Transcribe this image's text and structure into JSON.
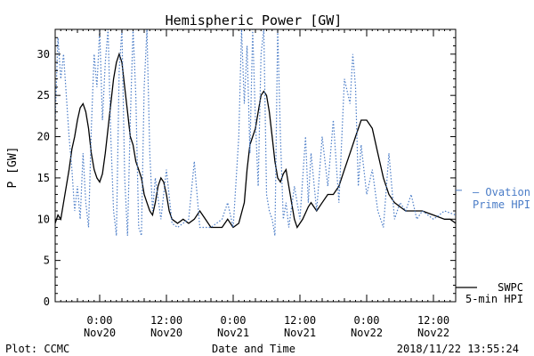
{
  "chart_data": {
    "type": "line",
    "title": "Hemispheric Power [GW]",
    "xlabel": "Date and Time",
    "ylabel": "P [GW]",
    "xlim": [
      "2018-11-19 16:00",
      "2018-11-22 16:00"
    ],
    "ylim": [
      0,
      33
    ],
    "yticks": [
      0,
      5,
      10,
      15,
      20,
      25,
      30
    ],
    "xticks": [
      {
        "t": "2018-11-20 00:00",
        "time": "0:00",
        "date": "Nov20"
      },
      {
        "t": "2018-11-20 12:00",
        "time": "12:00",
        "date": "Nov20"
      },
      {
        "t": "2018-11-21 00:00",
        "time": "0:00",
        "date": "Nov21"
      },
      {
        "t": "2018-11-21 12:00",
        "time": "12:00",
        "date": "Nov21"
      },
      {
        "t": "2018-11-22 00:00",
        "time": "0:00",
        "date": "Nov22"
      },
      {
        "t": "2018-11-22 12:00",
        "time": "12:00",
        "date": "Nov22"
      }
    ],
    "series": [
      {
        "name": "SWPC 5-min HPI",
        "color": "#000000",
        "style": "solid",
        "points": [
          [
            "2018-11-19 16:00",
            9.5
          ],
          [
            "2018-11-19 16:30",
            10.5
          ],
          [
            "2018-11-19 17:00",
            10
          ],
          [
            "2018-11-19 17:30",
            12
          ],
          [
            "2018-11-19 18:00",
            14
          ],
          [
            "2018-11-19 18:30",
            16
          ],
          [
            "2018-11-19 19:00",
            18.5
          ],
          [
            "2018-11-19 19:30",
            20
          ],
          [
            "2018-11-19 20:00",
            22
          ],
          [
            "2018-11-19 20:30",
            23.5
          ],
          [
            "2018-11-19 21:00",
            24
          ],
          [
            "2018-11-19 21:30",
            23
          ],
          [
            "2018-11-19 22:00",
            21
          ],
          [
            "2018-11-19 22:30",
            18
          ],
          [
            "2018-11-19 23:00",
            16
          ],
          [
            "2018-11-19 23:30",
            15
          ],
          [
            "2018-11-20 00:00",
            14.5
          ],
          [
            "2018-11-20 00:30",
            15.5
          ],
          [
            "2018-11-20 01:00",
            18
          ],
          [
            "2018-11-20 01:30",
            21
          ],
          [
            "2018-11-20 02:00",
            24
          ],
          [
            "2018-11-20 02:30",
            27
          ],
          [
            "2018-11-20 03:00",
            29
          ],
          [
            "2018-11-20 03:30",
            30
          ],
          [
            "2018-11-20 04:00",
            29
          ],
          [
            "2018-11-20 04:30",
            26
          ],
          [
            "2018-11-20 05:00",
            23
          ],
          [
            "2018-11-20 05:30",
            20
          ],
          [
            "2018-11-20 06:00",
            19
          ],
          [
            "2018-11-20 06:30",
            17
          ],
          [
            "2018-11-20 07:00",
            16
          ],
          [
            "2018-11-20 07:30",
            15
          ],
          [
            "2018-11-20 08:00",
            13
          ],
          [
            "2018-11-20 08:30",
            12
          ],
          [
            "2018-11-20 09:00",
            11
          ],
          [
            "2018-11-20 09:30",
            10.5
          ],
          [
            "2018-11-20 10:00",
            12
          ],
          [
            "2018-11-20 10:30",
            14
          ],
          [
            "2018-11-20 11:00",
            15
          ],
          [
            "2018-11-20 11:30",
            14.5
          ],
          [
            "2018-11-20 12:00",
            13
          ],
          [
            "2018-11-20 12:30",
            11
          ],
          [
            "2018-11-20 13:00",
            10
          ],
          [
            "2018-11-20 14:00",
            9.5
          ],
          [
            "2018-11-20 15:00",
            10
          ],
          [
            "2018-11-20 16:00",
            9.5
          ],
          [
            "2018-11-20 17:00",
            10
          ],
          [
            "2018-11-20 18:00",
            11
          ],
          [
            "2018-11-20 19:00",
            10
          ],
          [
            "2018-11-20 20:00",
            9
          ],
          [
            "2018-11-20 22:00",
            9
          ],
          [
            "2018-11-20 23:00",
            10
          ],
          [
            "2018-11-21 00:00",
            9
          ],
          [
            "2018-11-21 01:00",
            9.5
          ],
          [
            "2018-11-21 02:00",
            12
          ],
          [
            "2018-11-21 02:30",
            16
          ],
          [
            "2018-11-21 03:00",
            19
          ],
          [
            "2018-11-21 03:30",
            20
          ],
          [
            "2018-11-21 04:00",
            21
          ],
          [
            "2018-11-21 04:30",
            23
          ],
          [
            "2018-11-21 05:00",
            25
          ],
          [
            "2018-11-21 05:30",
            25.5
          ],
          [
            "2018-11-21 06:00",
            25
          ],
          [
            "2018-11-21 06:30",
            23
          ],
          [
            "2018-11-21 07:00",
            20
          ],
          [
            "2018-11-21 07:30",
            17
          ],
          [
            "2018-11-21 08:00",
            15
          ],
          [
            "2018-11-21 08:30",
            14.5
          ],
          [
            "2018-11-21 09:00",
            15.5
          ],
          [
            "2018-11-21 09:30",
            16
          ],
          [
            "2018-11-21 10:00",
            14
          ],
          [
            "2018-11-21 10:30",
            12
          ],
          [
            "2018-11-21 11:00",
            10
          ],
          [
            "2018-11-21 11:30",
            9
          ],
          [
            "2018-11-21 12:30",
            10
          ],
          [
            "2018-11-21 13:30",
            11.5
          ],
          [
            "2018-11-21 14:00",
            12
          ],
          [
            "2018-11-21 15:00",
            11
          ],
          [
            "2018-11-21 16:00",
            12
          ],
          [
            "2018-11-21 17:00",
            13
          ],
          [
            "2018-11-21 18:00",
            13
          ],
          [
            "2018-11-21 19:00",
            14
          ],
          [
            "2018-11-21 20:00",
            16
          ],
          [
            "2018-11-21 21:00",
            18
          ],
          [
            "2018-11-21 22:00",
            20
          ],
          [
            "2018-11-21 23:00",
            22
          ],
          [
            "2018-11-22 00:00",
            22
          ],
          [
            "2018-11-22 01:00",
            21
          ],
          [
            "2018-11-22 02:00",
            18
          ],
          [
            "2018-11-22 03:00",
            15
          ],
          [
            "2018-11-22 04:00",
            13
          ],
          [
            "2018-11-22 05:00",
            12
          ],
          [
            "2018-11-22 06:00",
            11.5
          ],
          [
            "2018-11-22 07:00",
            11
          ],
          [
            "2018-11-22 08:00",
            11
          ],
          [
            "2018-11-22 10:00",
            11
          ],
          [
            "2018-11-22 12:00",
            10.5
          ],
          [
            "2018-11-22 14:00",
            10
          ],
          [
            "2018-11-22 15:00",
            10
          ],
          [
            "2018-11-22 16:00",
            9.5
          ]
        ]
      },
      {
        "name": "Ovation Prime HPI",
        "color": "#4a7cc7",
        "style": "dotted",
        "points": [
          [
            "2018-11-19 16:00",
            22
          ],
          [
            "2018-11-19 16:30",
            32
          ],
          [
            "2018-11-19 17:00",
            27
          ],
          [
            "2018-11-19 17:30",
            30
          ],
          [
            "2018-11-19 18:00",
            25
          ],
          [
            "2018-11-19 18:30",
            20
          ],
          [
            "2018-11-19 19:00",
            16
          ],
          [
            "2018-11-19 19:30",
            11
          ],
          [
            "2018-11-19 20:00",
            14
          ],
          [
            "2018-11-19 20:30",
            10
          ],
          [
            "2018-11-19 21:00",
            18
          ],
          [
            "2018-11-19 21:30",
            12
          ],
          [
            "2018-11-19 22:00",
            9
          ],
          [
            "2018-11-19 22:30",
            21
          ],
          [
            "2018-11-19 23:00",
            30
          ],
          [
            "2018-11-19 23:30",
            26
          ],
          [
            "2018-11-20 00:00",
            33
          ],
          [
            "2018-11-20 00:30",
            22
          ],
          [
            "2018-11-20 01:00",
            29
          ],
          [
            "2018-11-20 01:30",
            33
          ],
          [
            "2018-11-20 02:00",
            20
          ],
          [
            "2018-11-20 02:30",
            11
          ],
          [
            "2018-11-20 03:00",
            8
          ],
          [
            "2018-11-20 03:30",
            28
          ],
          [
            "2018-11-20 04:00",
            33
          ],
          [
            "2018-11-20 04:30",
            15
          ],
          [
            "2018-11-20 05:00",
            8
          ],
          [
            "2018-11-20 05:30",
            22
          ],
          [
            "2018-11-20 06:00",
            33
          ],
          [
            "2018-11-20 06:30",
            25
          ],
          [
            "2018-11-20 07:00",
            9
          ],
          [
            "2018-11-20 07:30",
            8
          ],
          [
            "2018-11-20 08:00",
            26
          ],
          [
            "2018-11-20 08:30",
            33
          ],
          [
            "2018-11-20 09:00",
            18
          ],
          [
            "2018-11-20 09:30",
            11
          ],
          [
            "2018-11-20 10:00",
            15
          ],
          [
            "2018-11-20 11:00",
            10
          ],
          [
            "2018-11-20 12:00",
            16
          ],
          [
            "2018-11-20 13:00",
            9.5
          ],
          [
            "2018-11-20 14:00",
            9
          ],
          [
            "2018-11-20 16:00",
            10
          ],
          [
            "2018-11-20 17:00",
            17
          ],
          [
            "2018-11-20 18:00",
            9
          ],
          [
            "2018-11-20 20:00",
            9
          ],
          [
            "2018-11-20 22:00",
            10
          ],
          [
            "2018-11-20 23:00",
            12
          ],
          [
            "2018-11-21 00:00",
            9
          ],
          [
            "2018-11-21 01:00",
            20
          ],
          [
            "2018-11-21 01:30",
            33
          ],
          [
            "2018-11-21 02:00",
            24
          ],
          [
            "2018-11-21 02:30",
            31
          ],
          [
            "2018-11-21 03:00",
            18
          ],
          [
            "2018-11-21 03:30",
            33
          ],
          [
            "2018-11-21 04:00",
            22
          ],
          [
            "2018-11-21 04:30",
            14
          ],
          [
            "2018-11-21 05:00",
            30
          ],
          [
            "2018-11-21 05:30",
            33
          ],
          [
            "2018-11-21 06:00",
            13
          ],
          [
            "2018-11-21 06:30",
            11
          ],
          [
            "2018-11-21 07:00",
            10
          ],
          [
            "2018-11-21 07:30",
            8
          ],
          [
            "2018-11-21 08:00",
            33
          ],
          [
            "2018-11-21 08:30",
            20
          ],
          [
            "2018-11-21 09:00",
            10
          ],
          [
            "2018-11-21 09:30",
            12
          ],
          [
            "2018-11-21 10:00",
            9
          ],
          [
            "2018-11-21 11:00",
            14
          ],
          [
            "2018-11-21 12:00",
            10
          ],
          [
            "2018-11-21 13:00",
            20
          ],
          [
            "2018-11-21 13:30",
            12
          ],
          [
            "2018-11-21 14:00",
            18
          ],
          [
            "2018-11-21 15:00",
            11
          ],
          [
            "2018-11-21 16:00",
            20
          ],
          [
            "2018-11-21 17:00",
            14
          ],
          [
            "2018-11-21 18:00",
            22
          ],
          [
            "2018-11-21 19:00",
            12
          ],
          [
            "2018-11-21 20:00",
            27
          ],
          [
            "2018-11-21 21:00",
            24
          ],
          [
            "2018-11-21 21:30",
            30
          ],
          [
            "2018-11-21 22:00",
            26
          ],
          [
            "2018-11-21 22:30",
            14
          ],
          [
            "2018-11-21 23:00",
            19
          ],
          [
            "2018-11-22 00:00",
            13
          ],
          [
            "2018-11-22 01:00",
            16
          ],
          [
            "2018-11-22 02:00",
            11
          ],
          [
            "2018-11-22 03:00",
            9
          ],
          [
            "2018-11-22 04:00",
            18
          ],
          [
            "2018-11-22 05:00",
            10
          ],
          [
            "2018-11-22 06:00",
            12
          ],
          [
            "2018-11-22 07:00",
            11
          ],
          [
            "2018-11-22 08:00",
            13
          ],
          [
            "2018-11-22 09:00",
            10
          ],
          [
            "2018-11-22 10:00",
            11
          ],
          [
            "2018-11-22 12:00",
            10
          ],
          [
            "2018-11-22 14:00",
            11
          ],
          [
            "2018-11-22 16:00",
            10.5
          ]
        ]
      }
    ],
    "legend": [
      {
        "lines": [
          "— Ovation",
          "Prime HPI"
        ],
        "color": "#4a7cc7",
        "style": "dotted"
      },
      {
        "lines": [
          "SWPC",
          "5-min HPI"
        ],
        "color": "#000000",
        "style": "solid"
      }
    ],
    "legend_placement": "right"
  },
  "footer": {
    "plot_credit": "Plot: CCMC",
    "timestamp": "2018/11/22 13:55:24"
  }
}
